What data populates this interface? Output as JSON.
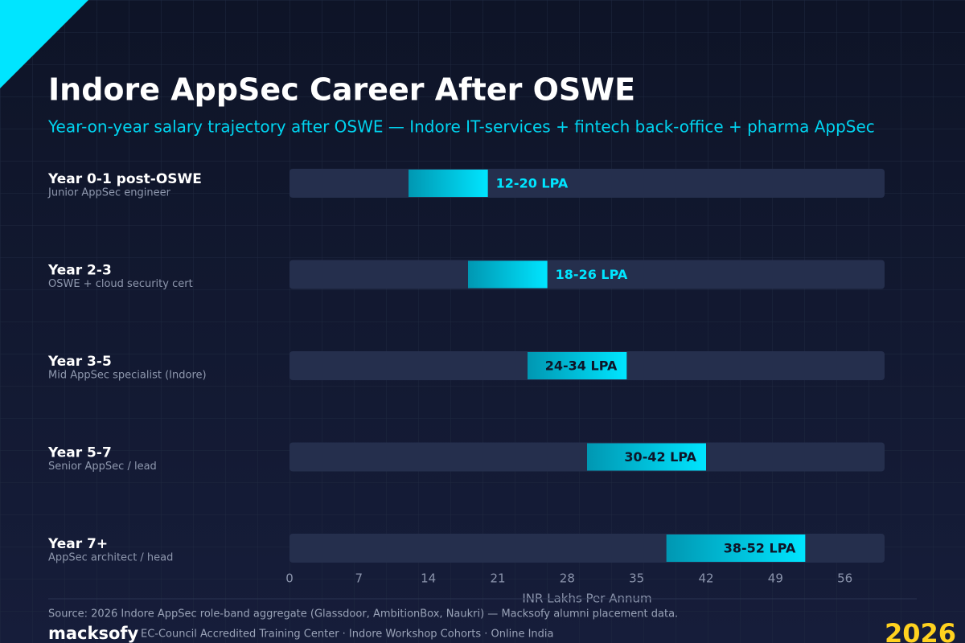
{
  "chart_data": {
    "type": "range-bar",
    "title": "Indore AppSec Career After OSWE",
    "subtitle": "Year-on-year salary trajectory after OSWE — Indore IT-services + fintech back-office + pharma AppSec",
    "categories": [
      "Year 0-1 post-OSWE",
      "Year 2-3",
      "Year 3-5",
      "Year 5-7",
      "Year 7+"
    ],
    "descriptions": [
      "Junior AppSec engineer",
      "OSWE + cloud security cert",
      "Mid AppSec specialist (Indore)",
      "Senior AppSec / lead",
      "AppSec architect / head"
    ],
    "low": [
      12,
      18,
      24,
      30,
      38
    ],
    "high": [
      20,
      26,
      34,
      42,
      52
    ],
    "value_labels": [
      "12-20 LPA",
      "18-26 LPA",
      "24-34 LPA",
      "30-42 LPA",
      "38-52 LPA"
    ],
    "xlabel": "INR Lakhs Per Annum",
    "xlim": [
      0,
      60
    ],
    "xticks": [
      0,
      7,
      14,
      21,
      28,
      35,
      42,
      49,
      56
    ],
    "color": [
      "#0097b2",
      "#00e5ff"
    ]
  },
  "footer": {
    "source": "Source: 2026 Indore AppSec role-band aggregate (Glassdoor, AmbitionBox, Naukri) — Macksofy alumni placement data.",
    "brand": "macksofy",
    "tagline": "EC-Council Accredited Training Center · Indore Workshop Cohorts · Online India",
    "year": "2026"
  }
}
